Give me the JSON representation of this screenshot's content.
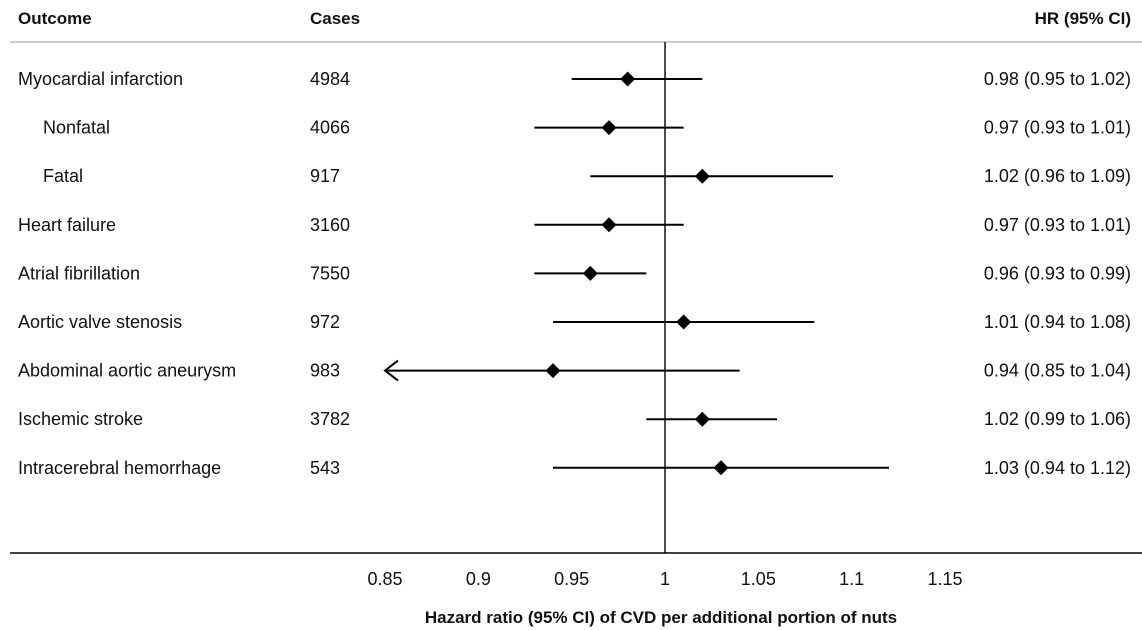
{
  "chart_data": {
    "type": "forest",
    "columns": {
      "outcome": "Outcome",
      "cases": "Cases",
      "estimate": "HR (95% CI)"
    },
    "rows": [
      {
        "label": "Myocardial infarction",
        "indent": false,
        "cases": "4984",
        "hr": 0.98,
        "lo": 0.95,
        "hi": 1.02,
        "text": "0.98 (0.95 to 1.02)"
      },
      {
        "label": "Nonfatal",
        "indent": true,
        "cases": "4066",
        "hr": 0.97,
        "lo": 0.93,
        "hi": 1.01,
        "text": "0.97 (0.93 to 1.01)"
      },
      {
        "label": "Fatal",
        "indent": true,
        "cases": "917",
        "hr": 1.02,
        "lo": 0.96,
        "hi": 1.09,
        "text": "1.02 (0.96 to 1.09)"
      },
      {
        "label": "Heart failure",
        "indent": false,
        "cases": "3160",
        "hr": 0.97,
        "lo": 0.93,
        "hi": 1.01,
        "text": "0.97 (0.93 to 1.01)"
      },
      {
        "label": "Atrial fibrillation",
        "indent": false,
        "cases": "7550",
        "hr": 0.96,
        "lo": 0.93,
        "hi": 0.99,
        "text": "0.96 (0.93 to 0.99)"
      },
      {
        "label": "Aortic valve stenosis",
        "indent": false,
        "cases": "972",
        "hr": 1.01,
        "lo": 0.94,
        "hi": 1.08,
        "text": "1.01 (0.94 to 1.08)"
      },
      {
        "label": "Abdominal aortic aneurysm",
        "indent": false,
        "cases": "983",
        "hr": 0.94,
        "lo": 0.85,
        "hi": 1.04,
        "text": "0.94 (0.85 to 1.04)",
        "truncated_low": true
      },
      {
        "label": "Ischemic stroke",
        "indent": false,
        "cases": "3782",
        "hr": 1.02,
        "lo": 0.99,
        "hi": 1.06,
        "text": "1.02 (0.99 to 1.06)"
      },
      {
        "label": "Intracerebral hemorrhage",
        "indent": false,
        "cases": "543",
        "hr": 1.03,
        "lo": 0.94,
        "hi": 1.12,
        "text": "1.03 (0.94 to 1.12)"
      }
    ],
    "x_ticks": [
      0.85,
      0.9,
      0.95,
      1,
      1.05,
      1.1,
      1.15
    ],
    "x_tick_labels": [
      "0.85",
      "0.9",
      "0.95",
      "1",
      "1.05",
      "1.1",
      "1.15"
    ],
    "xlim": [
      0.825,
      1.175
    ],
    "reference_line": 1,
    "xlabel": "Hazard ratio (95% CI) of CVD per additional portion of nuts",
    "colors": {
      "marks": "#000000",
      "text": "#111111"
    }
  }
}
